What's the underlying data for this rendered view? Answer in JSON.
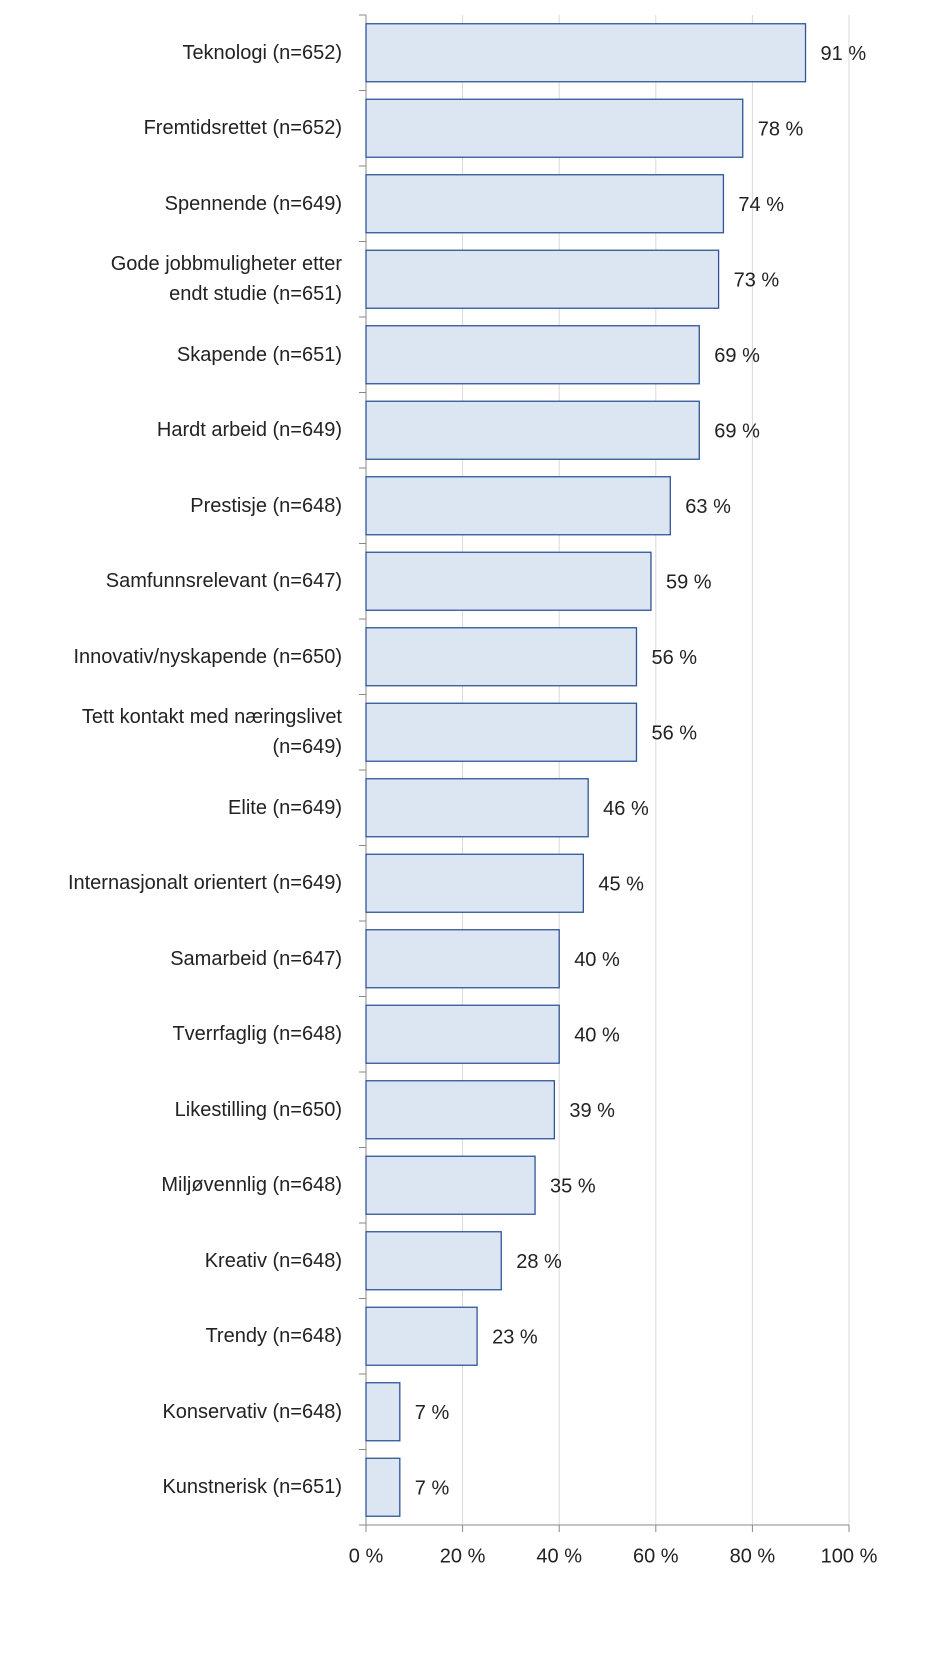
{
  "chart_data": {
    "type": "bar",
    "orientation": "horizontal",
    "categories": [
      "Teknologi (n=652)",
      "Fremtidsrettet (n=652)",
      "Spennende (n=649)",
      "Gode jobbmuligheter etter\nendt studie (n=651)",
      "Skapende (n=651)",
      "Hardt arbeid (n=649)",
      "Prestisje (n=648)",
      "Samfunnsrelevant (n=647)",
      "Innovativ/nyskapende (n=650)",
      "Tett kontakt med næringslivet\n(n=649)",
      "Elite (n=649)",
      "Internasjonalt orientert  (n=649)",
      "Samarbeid (n=647)",
      "Tverrfaglig (n=648)",
      "Likestilling (n=650)",
      "Miljøvennlig (n=648)",
      "Kreativ (n=648)",
      "Trendy (n=648)",
      "Konservativ (n=648)",
      "Kunstnerisk (n=651)"
    ],
    "values": [
      91,
      78,
      74,
      73,
      69,
      69,
      63,
      59,
      56,
      56,
      46,
      45,
      40,
      40,
      39,
      35,
      28,
      23,
      7,
      7
    ],
    "value_labels": [
      "91 %",
      "78 %",
      "74 %",
      "73 %",
      "69 %",
      "69 %",
      "63 %",
      "59 %",
      "56 %",
      "56 %",
      "46 %",
      "45 %",
      "40 %",
      "40 %",
      "39 %",
      "35 %",
      "28 %",
      "23 %",
      "7 %",
      "7 %"
    ],
    "color": "#dce6f2",
    "edge_color": "#2f5597",
    "xlim": [
      0,
      100
    ],
    "xticks": [
      {
        "value": 0,
        "label": "0 %"
      },
      {
        "value": 20,
        "label": "20 %"
      },
      {
        "value": 40,
        "label": "40 %"
      },
      {
        "value": 60,
        "label": "60 %"
      },
      {
        "value": 80,
        "label": "80 %"
      },
      {
        "value": 100,
        "label": "100 %"
      }
    ],
    "grid": true
  }
}
